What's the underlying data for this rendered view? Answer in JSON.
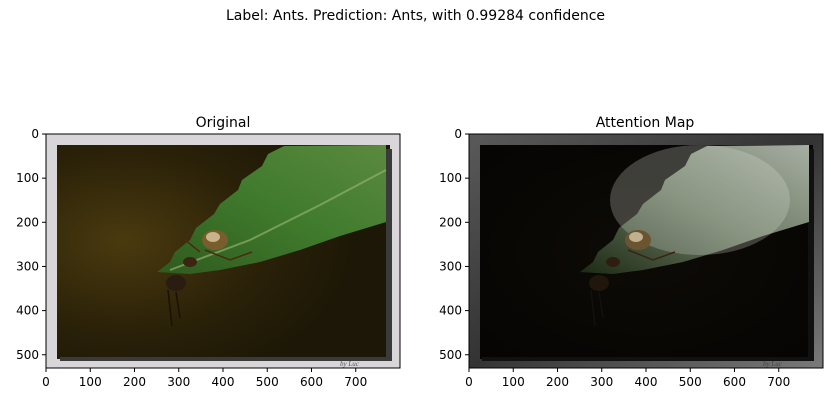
{
  "figure": {
    "suptitle": "Label: Ants. Prediction: Ants, with 0.99284 confidence"
  },
  "panels": [
    {
      "title": "Original",
      "image": "photo of an ant on a serrated green leaf against dark background",
      "x_ticks": [
        "0",
        "100",
        "200",
        "300",
        "400",
        "500",
        "600",
        "700"
      ],
      "y_ticks": [
        "0",
        "100",
        "200",
        "300",
        "400",
        "500"
      ]
    },
    {
      "title": "Attention Map",
      "image": "same photo overlaid with attention heat map; leaf and ant highlighted, background darkened",
      "x_ticks": [
        "0",
        "100",
        "200",
        "300",
        "400",
        "500",
        "600",
        "700"
      ],
      "y_ticks": [
        "0",
        "100",
        "200",
        "300",
        "400",
        "500"
      ]
    }
  ],
  "axis": {
    "x_range": [
      0,
      800
    ],
    "y_range": [
      530,
      0
    ]
  },
  "colors": {
    "leaf": "#3f6e2b",
    "background_photo": "#2a2108",
    "frame": "#d9d6da",
    "frame_dark": "#6b6b6b"
  }
}
